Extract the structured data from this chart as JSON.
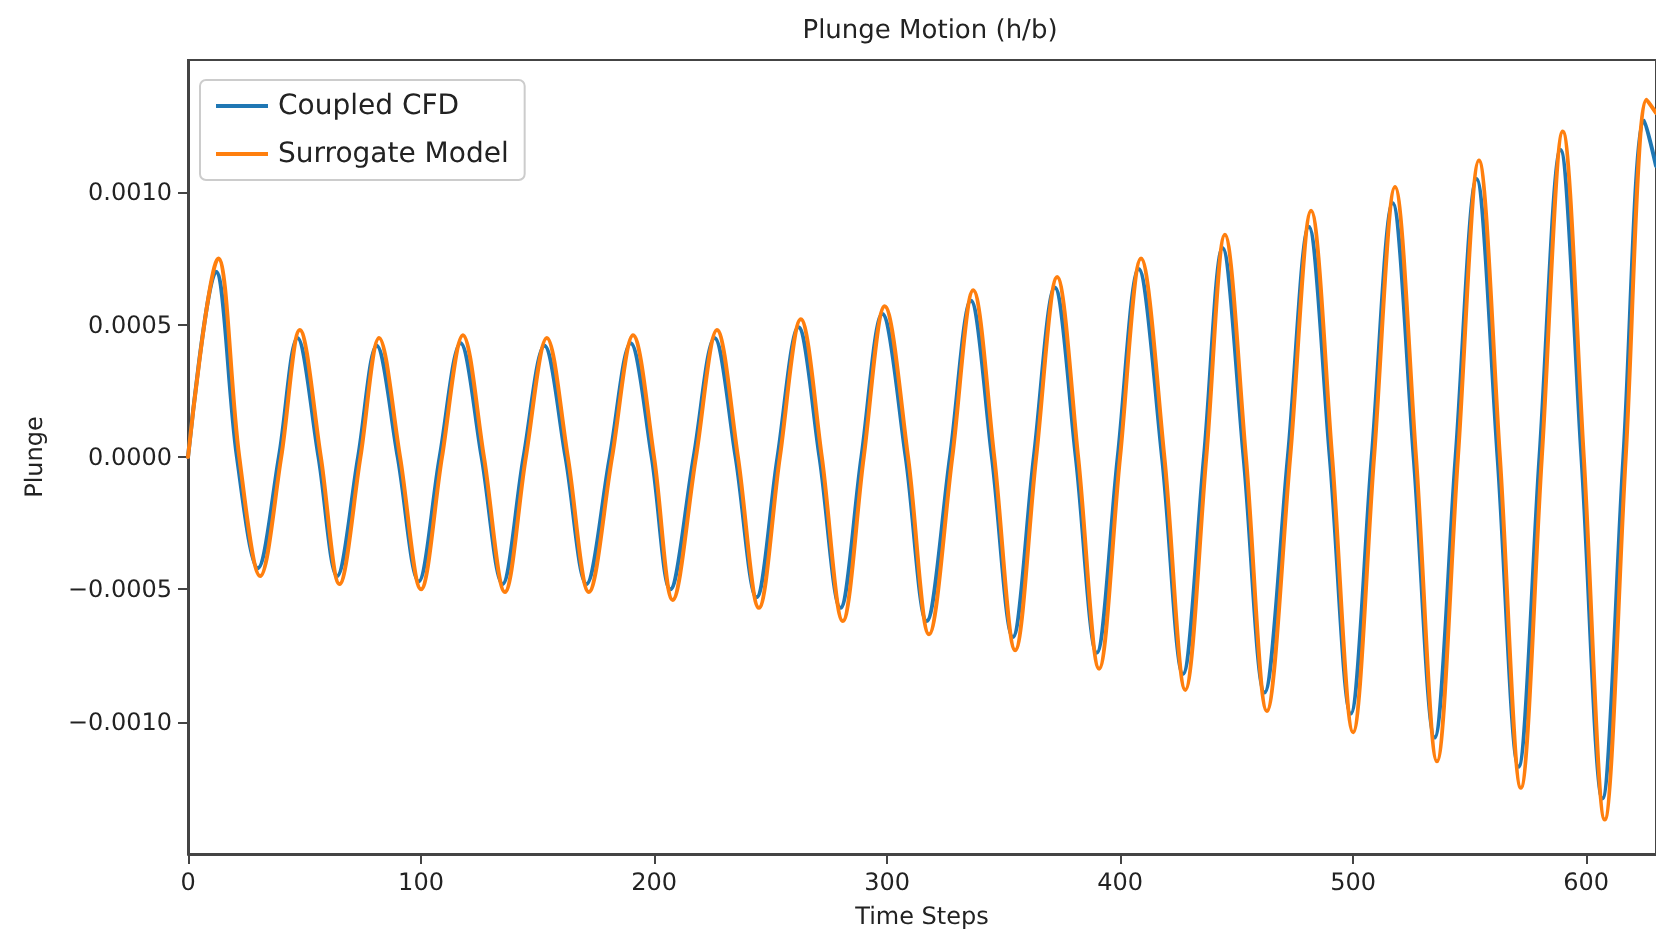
{
  "chart_data": {
    "type": "line",
    "title": "Plunge Motion (h/b)",
    "xlabel": "Time Steps",
    "ylabel": "Plunge",
    "xlim": [
      0,
      630
    ],
    "xticks": [
      0,
      100,
      200,
      300,
      400,
      500,
      600
    ],
    "ylim": [
      -0.0015,
      0.0015
    ],
    "yticks": [
      {
        "value": -0.001,
        "label": "−0.0010"
      },
      {
        "value": -0.0005,
        "label": "−0.0005"
      },
      {
        "value": 0,
        "label": "0.0000"
      },
      {
        "value": 0.0005,
        "label": "0.0005"
      },
      {
        "value": 0.001,
        "label": "0.0010"
      }
    ],
    "grid": false,
    "legend": "top left",
    "marker": "none",
    "line_style": "solid",
    "series": [
      {
        "name": "Coupled CFD",
        "color": "#1f77b4",
        "x": [
          0,
          12,
          21,
          30,
          39,
          47,
          56,
          64,
          73,
          81,
          90,
          99,
          108,
          117,
          126,
          135,
          144,
          153,
          162,
          171,
          181,
          190,
          199,
          207,
          217,
          226,
          235,
          244,
          253,
          262,
          271,
          280,
          289,
          298,
          308,
          317,
          327,
          336,
          345,
          354,
          363,
          372,
          381,
          390,
          399,
          408,
          418,
          427,
          436,
          444,
          453,
          462,
          472,
          481,
          490,
          499,
          508,
          517,
          526,
          535,
          544,
          553,
          562,
          571,
          580,
          589,
          598,
          607,
          616,
          625,
          630
        ],
        "values": [
          0,
          0.0007,
          0,
          -0.00042,
          0,
          0.00045,
          0,
          -0.00045,
          0,
          0.00042,
          0,
          -0.00047,
          0,
          0.00043,
          0,
          -0.00048,
          0,
          0.00042,
          0,
          -0.00048,
          0,
          0.00043,
          0,
          -0.0005,
          0,
          0.00045,
          0,
          -0.00053,
          0,
          0.00049,
          0,
          -0.00057,
          0,
          0.00054,
          0,
          -0.00062,
          0,
          0.00059,
          0,
          -0.00068,
          0,
          0.00064,
          0,
          -0.00074,
          0,
          0.00071,
          0,
          -0.00082,
          0,
          0.00079,
          0,
          -0.00089,
          0,
          0.00087,
          0,
          -0.00097,
          0,
          0.00096,
          0,
          -0.00106,
          0,
          0.00105,
          0,
          -0.00117,
          0,
          0.00116,
          0,
          -0.00129,
          0,
          0.00127,
          0.0011
        ]
      },
      {
        "name": "Surrogate Model",
        "color": "#ff7f0e",
        "x": [
          0,
          13,
          22,
          31,
          40,
          48,
          57,
          65,
          74,
          82,
          91,
          100,
          109,
          118,
          127,
          136,
          145,
          154,
          163,
          172,
          182,
          191,
          200,
          208,
          218,
          227,
          236,
          245,
          254,
          263,
          272,
          281,
          290,
          299,
          309,
          318,
          328,
          337,
          346,
          355,
          364,
          373,
          382,
          391,
          400,
          409,
          419,
          428,
          437,
          445,
          454,
          463,
          473,
          482,
          491,
          500,
          509,
          518,
          527,
          536,
          545,
          554,
          563,
          572,
          581,
          590,
          599,
          608,
          617,
          626,
          630
        ],
        "values": [
          0,
          0.00075,
          0,
          -0.00045,
          0,
          0.00048,
          0,
          -0.00048,
          0,
          0.00045,
          0,
          -0.0005,
          0,
          0.00046,
          0,
          -0.00051,
          0,
          0.00045,
          0,
          -0.00051,
          0,
          0.00046,
          0,
          -0.00054,
          0,
          0.00048,
          0,
          -0.00057,
          0,
          0.00052,
          0,
          -0.00062,
          0,
          0.00057,
          0,
          -0.00067,
          0,
          0.00063,
          0,
          -0.00073,
          0,
          0.00068,
          0,
          -0.0008,
          0,
          0.00075,
          0,
          -0.00088,
          0,
          0.00084,
          0,
          -0.00096,
          0,
          0.00093,
          0,
          -0.00104,
          0,
          0.00102,
          0,
          -0.00115,
          0,
          0.00112,
          0,
          -0.00125,
          0,
          0.00123,
          0,
          -0.00137,
          0,
          0.00135,
          0.0013
        ]
      }
    ]
  }
}
